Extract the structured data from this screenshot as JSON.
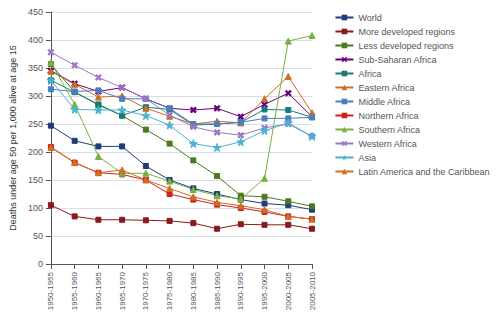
{
  "chart_data": {
    "type": "line",
    "categories": [
      "1950-1955",
      "1955-1960",
      "1960-1965",
      "1965-1970",
      "1970-1975",
      "1975-1980",
      "1980-1985",
      "1985-1990",
      "1990-1995",
      "1995-2000",
      "2000-2005",
      "2005-2010"
    ],
    "series": [
      {
        "name": "World",
        "color": "#1f3d7a",
        "marker": "square",
        "values": [
          247,
          220,
          210,
          210,
          175,
          150,
          135,
          125,
          115,
          108,
          105,
          97
        ]
      },
      {
        "name": "More developed regions",
        "color": "#8b1a1a",
        "marker": "square",
        "values": [
          105,
          85,
          79,
          79,
          78,
          77,
          73,
          63,
          71,
          70,
          70,
          63
        ]
      },
      {
        "name": "Less developed regions",
        "color": "#4d7a1f",
        "marker": "square",
        "values": [
          357,
          307,
          285,
          265,
          240,
          215,
          185,
          157,
          122,
          120,
          112,
          103
        ]
      },
      {
        "name": "Sub-Saharan Africa",
        "color": "#6a0080",
        "marker": "x",
        "values": [
          345,
          322,
          308,
          315,
          295,
          278,
          275,
          278,
          263,
          285,
          305,
          263
        ]
      },
      {
        "name": "Africa",
        "color": "#1a7a7a",
        "marker": "square",
        "values": [
          328,
          307,
          284,
          265,
          280,
          276,
          248,
          250,
          253,
          276,
          275,
          262
        ]
      },
      {
        "name": "Eastern Africa",
        "color": "#c87020",
        "marker": "triangle",
        "values": [
          344,
          321,
          298,
          300,
          278,
          264,
          250,
          255,
          252,
          295,
          335,
          270
        ]
      },
      {
        "name": "Middle Africa",
        "color": "#4c7dbf",
        "marker": "square",
        "values": [
          312,
          308,
          310,
          295,
          295,
          278,
          250,
          250,
          253,
          260,
          260,
          262
        ]
      },
      {
        "name": "Northern Africa",
        "color": "#cc2222",
        "marker": "square",
        "values": [
          209,
          181,
          163,
          160,
          150,
          125,
          115,
          106,
          100,
          93,
          85,
          80
        ]
      },
      {
        "name": "Southern Africa",
        "color": "#7ab040",
        "marker": "triangle",
        "values": [
          360,
          285,
          192,
          162,
          162,
          148,
          133,
          122,
          116,
          153,
          398,
          408
        ]
      },
      {
        "name": "Western Africa",
        "color": "#9e77c2",
        "marker": "x",
        "values": [
          378,
          355,
          333,
          315,
          295,
          266,
          245,
          235,
          230,
          243,
          250,
          228
        ]
      },
      {
        "name": "Asia",
        "color": "#4ab3d1",
        "marker": "star",
        "values": [
          328,
          276,
          275,
          275,
          265,
          248,
          215,
          208,
          218,
          238,
          252,
          228
        ]
      },
      {
        "name": "Latin America and the Caribbean",
        "color": "#d07020",
        "marker": "triangle",
        "values": [
          208,
          181,
          163,
          168,
          150,
          135,
          120,
          110,
          104,
          97,
          85,
          80
        ]
      }
    ],
    "ylabel": "Deaths under age 50 per 1,000 alive at age 15",
    "ylim": [
      0,
      450
    ],
    "yticks": [
      0,
      50,
      100,
      150,
      200,
      250,
      300,
      350,
      400,
      450
    ],
    "grid": true,
    "legend": "right"
  }
}
